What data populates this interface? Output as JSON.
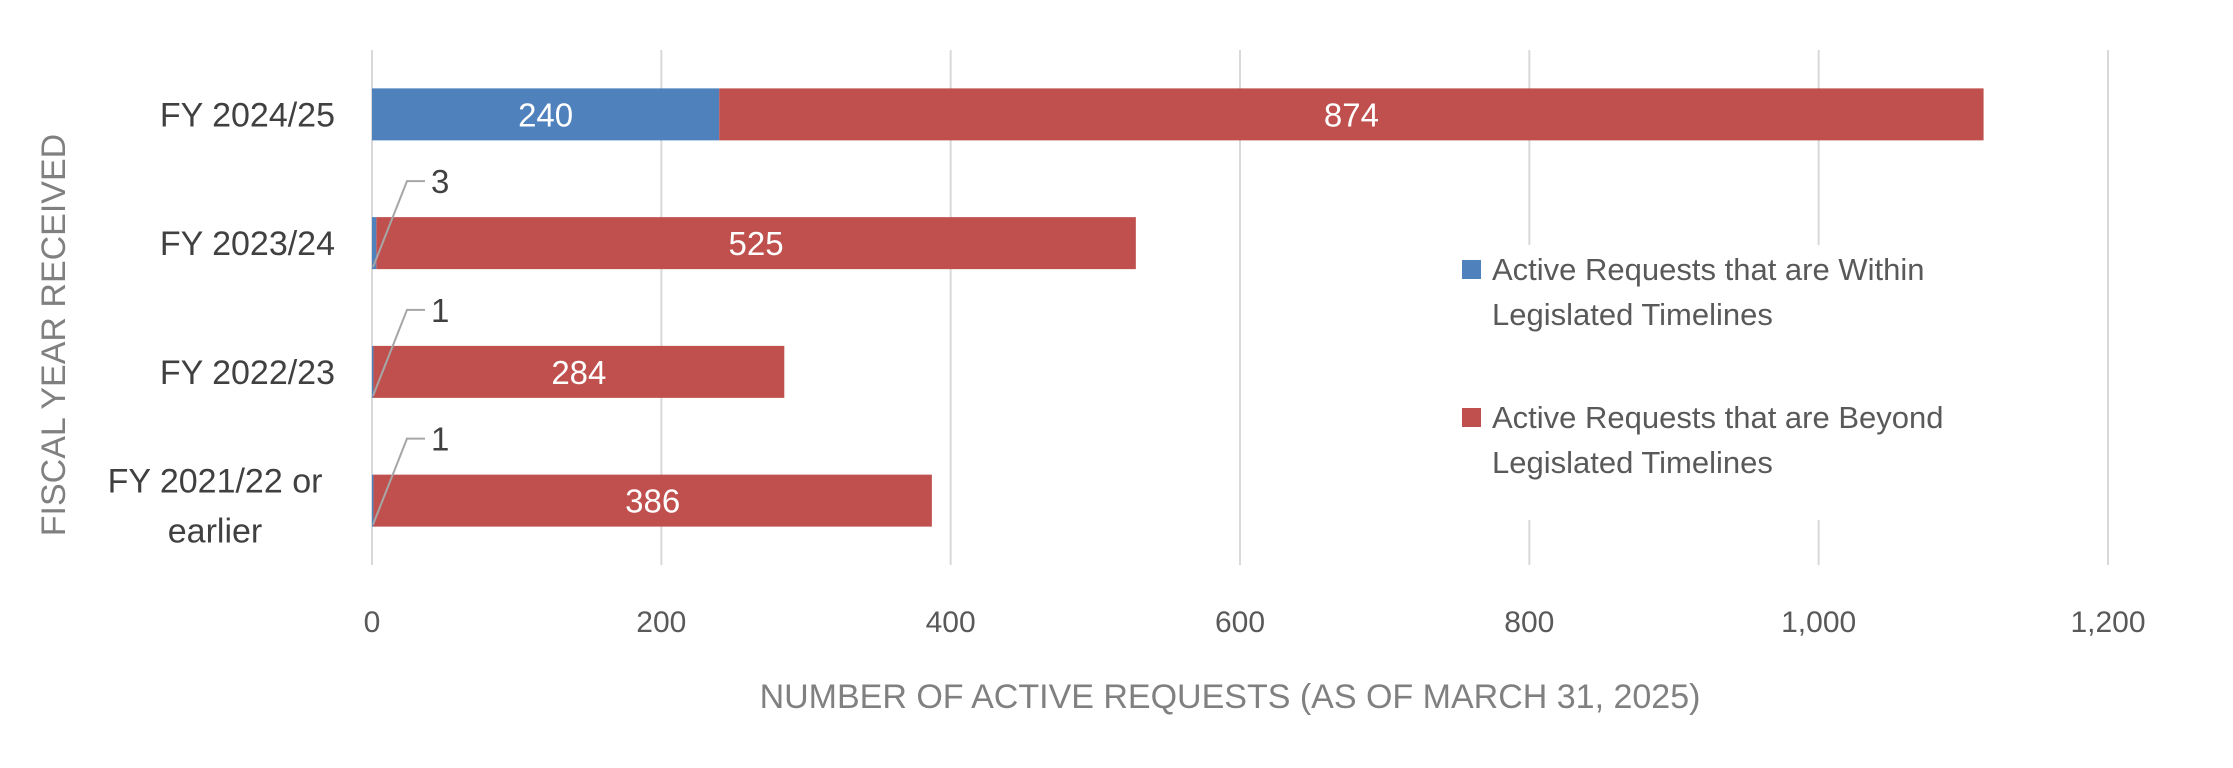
{
  "chart_data": {
    "type": "bar",
    "orientation": "horizontal",
    "stacked": true,
    "categories": [
      "FY 2024/25",
      "FY 2023/24",
      "FY 2022/23",
      "FY 2021/22 or earlier"
    ],
    "series": [
      {
        "name": "Active Requests that are Within Legislated Timelines",
        "color": "#4F81BD",
        "values": [
          240,
          3,
          1,
          1
        ]
      },
      {
        "name": "Active Requests that are Beyond Legislated Timelines",
        "color": "#C0504D",
        "values": [
          874,
          525,
          284,
          386
        ]
      }
    ],
    "xlabel": "NUMBER OF ACTIVE REQUESTS (AS OF MARCH 31, 2025)",
    "ylabel": "FISCAL YEAR RECEIVED",
    "xlim": [
      0,
      1200
    ],
    "xticks": [
      "0",
      "200",
      "400",
      "600",
      "800",
      "1,000",
      "1,200"
    ],
    "grid": true,
    "legend_position": "right"
  }
}
